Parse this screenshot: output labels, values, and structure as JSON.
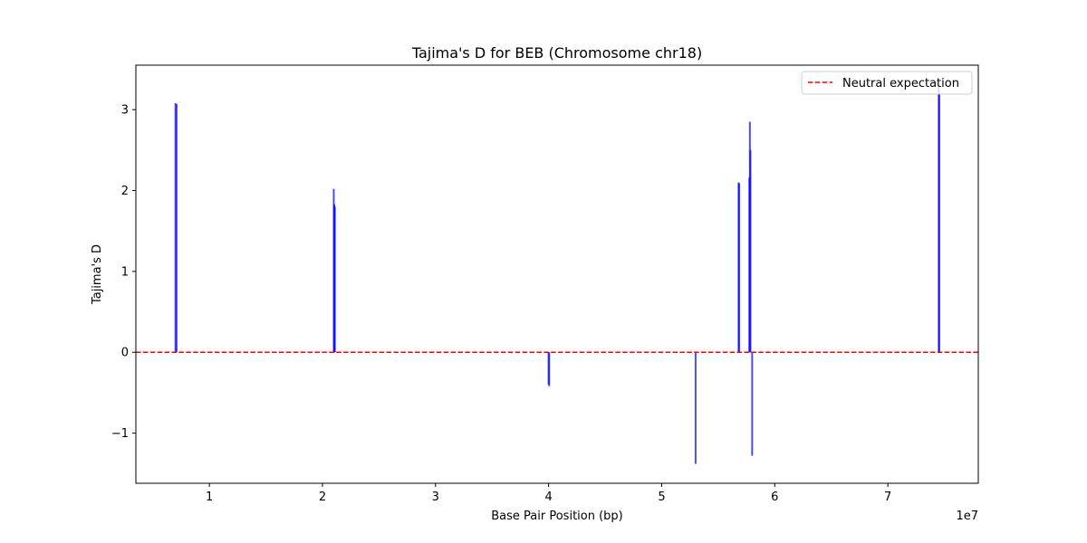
{
  "chart_data": {
    "type": "bar",
    "title": "Tajima's D for BEB (Chromosome chr18)",
    "xlabel": "Base Pair Position (bp)",
    "ylabel": "Tajima's D",
    "x_offset_label": "1e7",
    "xlim": [
      3500000,
      78000000
    ],
    "ylim": [
      -1.62,
      3.55
    ],
    "x_ticks": [
      10000000,
      20000000,
      30000000,
      40000000,
      50000000,
      60000000,
      70000000
    ],
    "x_tick_labels": [
      "1",
      "2",
      "3",
      "4",
      "5",
      "6",
      "7"
    ],
    "y_ticks": [
      -1,
      0,
      1,
      2,
      3
    ],
    "y_tick_labels": [
      "−1",
      "0",
      "1",
      "2",
      "3"
    ],
    "bar_color": "#0000ff",
    "bar_opacity": 0.7,
    "grid": false,
    "reference_line": {
      "y": 0,
      "color": "#ff0000",
      "style": "dashed",
      "label": "Neutral expectation"
    },
    "legend": {
      "location": "upper right",
      "entries": [
        "Neutral expectation"
      ]
    },
    "series": [
      {
        "x": [
          7000000,
          7100000,
          21000000,
          21050000,
          21100000,
          40000000,
          40050000,
          53000000,
          56800000,
          56850000,
          57750000,
          57800000,
          57850000,
          57900000,
          58000000,
          74500000,
          74550000
        ],
        "values": [
          3.08,
          3.07,
          2.02,
          1.83,
          1.8,
          -0.4,
          -0.42,
          -1.38,
          2.1,
          2.09,
          2.16,
          2.85,
          2.5,
          0.0,
          -1.28,
          3.32,
          3.2
        ]
      }
    ]
  }
}
